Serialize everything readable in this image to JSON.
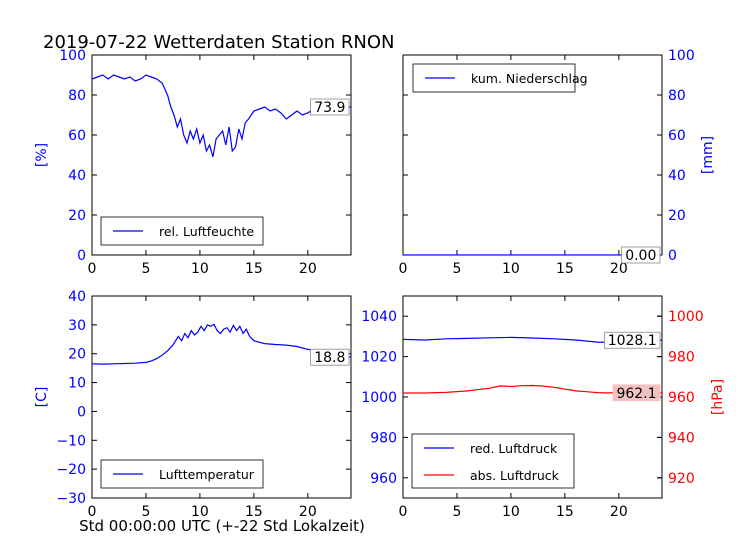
{
  "title": "2019-07-22 Wetterdaten Station RNON",
  "xlabel": "Std 00:00:00 UTC (+-22 Std Lokalzeit)",
  "chart_data": [
    {
      "id": "humidity",
      "type": "line",
      "xlim": [
        0,
        24
      ],
      "xticks": [
        "0",
        "5",
        "10",
        "15",
        "20"
      ],
      "ylim": [
        0,
        100
      ],
      "yticks": [
        "0",
        "20",
        "40",
        "60",
        "80",
        "100"
      ],
      "ylabel": "[%]",
      "ylabel_color": "#0000ff",
      "tick_color": "#0000ff",
      "series": [
        {
          "name": "rel. Luftfeuchte",
          "color": "#0000ff",
          "x": [
            0,
            0.5,
            1,
            1.5,
            2,
            2.5,
            3,
            3.5,
            4,
            4.5,
            5,
            5.5,
            6,
            6.5,
            7,
            7.3,
            7.6,
            7.9,
            8.2,
            8.5,
            8.8,
            9.1,
            9.4,
            9.7,
            10,
            10.3,
            10.6,
            10.9,
            11.2,
            11.5,
            11.8,
            12.1,
            12.4,
            12.7,
            13,
            13.3,
            13.6,
            13.9,
            14.2,
            14.5,
            15,
            15.5,
            16,
            16.5,
            17,
            17.5,
            18,
            18.5,
            19,
            19.5,
            20,
            20.5,
            21,
            21.5,
            22,
            22.5,
            23,
            23.5,
            24
          ],
          "y": [
            88,
            89,
            90,
            88,
            90,
            89,
            88,
            89,
            87,
            88,
            90,
            89,
            88,
            86,
            80,
            74,
            70,
            64,
            68,
            60,
            56,
            62,
            58,
            63,
            56,
            60,
            52,
            55,
            49,
            58,
            60,
            62,
            55,
            64,
            52,
            54,
            63,
            58,
            66,
            68,
            72,
            73,
            74,
            72,
            73,
            71,
            68,
            70,
            72,
            70,
            71,
            73,
            72,
            74,
            75,
            74,
            73,
            74,
            74
          ]
        }
      ],
      "last_value": "73.9",
      "legend_position": "lower-left"
    },
    {
      "id": "precipitation",
      "type": "line",
      "xlim": [
        0,
        24
      ],
      "xticks": [
        "0",
        "5",
        "10",
        "15",
        "20"
      ],
      "ylim": [
        0,
        100
      ],
      "yticks": [
        "0",
        "20",
        "40",
        "60",
        "80",
        "100"
      ],
      "ylabel": "[mm]",
      "ylabel_color": "#0000ff",
      "tick_color": "#0000ff",
      "axis_side": "right",
      "series": [
        {
          "name": "kum. Niederschlag",
          "color": "#0000ff",
          "x": [
            0,
            24
          ],
          "y": [
            0,
            0
          ]
        }
      ],
      "last_value": "0.00",
      "legend_position": "upper-left"
    },
    {
      "id": "temperature",
      "type": "line",
      "xlim": [
        0,
        24
      ],
      "xticks": [
        "0",
        "5",
        "10",
        "15",
        "20"
      ],
      "ylim": [
        -30,
        40
      ],
      "yticks": [
        "−30",
        "−20",
        "−10",
        "0",
        "10",
        "20",
        "30",
        "40"
      ],
      "ylabel": "[C]",
      "ylabel_color": "#0000ff",
      "tick_color": "#0000ff",
      "series": [
        {
          "name": "Lufttemperatur",
          "color": "#0000ff",
          "x": [
            0,
            1,
            2,
            3,
            4,
            5,
            5.5,
            6,
            6.5,
            7,
            7.5,
            8,
            8.3,
            8.6,
            8.9,
            9.2,
            9.5,
            9.8,
            10.1,
            10.4,
            10.7,
            11,
            11.3,
            11.6,
            11.9,
            12.2,
            12.5,
            12.8,
            13.1,
            13.4,
            13.7,
            14,
            14.3,
            14.6,
            15,
            15.5,
            16,
            17,
            18,
            19,
            20,
            21,
            22,
            23,
            24
          ],
          "y": [
            16.5,
            16.4,
            16.5,
            16.6,
            16.7,
            17,
            17.5,
            18.3,
            19.5,
            21,
            23,
            26,
            24.5,
            27,
            25.5,
            28,
            26.5,
            27.5,
            29.5,
            28,
            30,
            29.5,
            30.2,
            28,
            27,
            28.5,
            29,
            27.5,
            29.8,
            28,
            29.5,
            27,
            28.5,
            26,
            24.5,
            24,
            23.5,
            23.2,
            23,
            22.5,
            21.5,
            21,
            20.3,
            19.5,
            18.8
          ]
        }
      ],
      "last_value": "18.8",
      "legend_position": "lower-left"
    },
    {
      "id": "pressure",
      "type": "line",
      "xlim": [
        0,
        24
      ],
      "xticks": [
        "0",
        "5",
        "10",
        "15",
        "20"
      ],
      "ylim": [
        950,
        1050
      ],
      "yticks": [
        "960",
        "980",
        "1000",
        "1020",
        "1040"
      ],
      "tick_color": "#0000ff",
      "right_axis": {
        "ylim": [
          910,
          1010
        ],
        "yticks": [
          "920",
          "940",
          "960",
          "980",
          "1000"
        ],
        "ylabel": "[hPa]",
        "color": "#ff0000"
      },
      "series": [
        {
          "name": "red. Luftdruck",
          "color": "#0000ff",
          "axis": "left",
          "x": [
            0,
            2,
            4,
            6,
            8,
            10,
            12,
            14,
            16,
            18,
            20,
            22,
            24
          ],
          "y": [
            1028.5,
            1028.2,
            1028.8,
            1029,
            1029.3,
            1029.5,
            1029.2,
            1028.8,
            1028.2,
            1027.2,
            1027,
            1027.6,
            1028.1
          ]
        },
        {
          "name": "abs. Luftdruck",
          "color": "#ff0000",
          "axis": "right",
          "x": [
            0,
            2,
            4,
            6,
            7,
            8,
            9,
            10,
            11,
            12,
            13,
            14,
            15,
            16,
            17,
            18,
            19,
            20,
            21,
            22,
            23,
            24
          ],
          "y": [
            962,
            962,
            962.3,
            963,
            963.7,
            964.3,
            965.5,
            965.2,
            965.6,
            965.7,
            965.4,
            964.8,
            963.9,
            963,
            962.6,
            962.2,
            962,
            962.3,
            962.6,
            962.2,
            962.1,
            962.1
          ]
        }
      ],
      "last_values": [
        {
          "text": "1028.1",
          "series": "red. Luftdruck"
        },
        {
          "text": "962.1",
          "series": "abs. Luftdruck"
        }
      ],
      "legend_position": "lower-left"
    }
  ]
}
